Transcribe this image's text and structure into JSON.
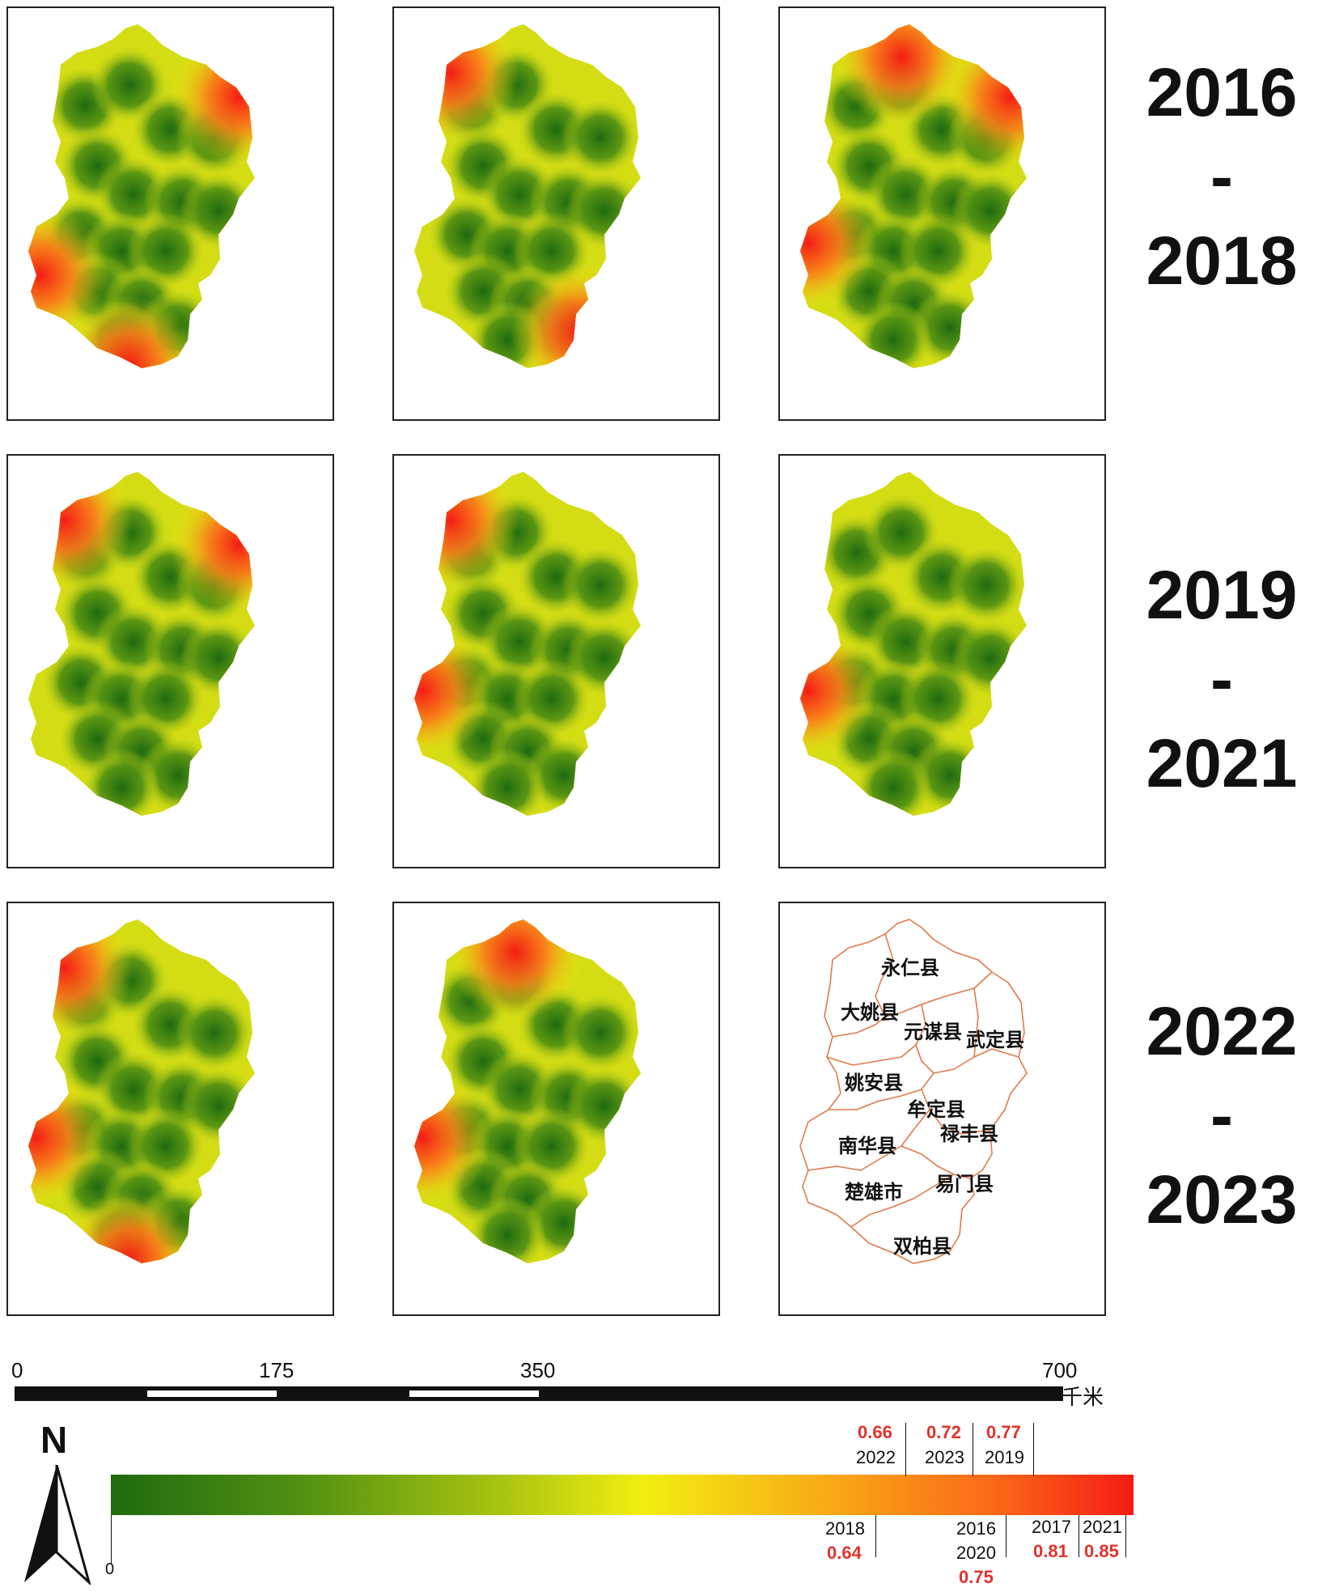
{
  "periods": [
    {
      "start": "2016",
      "dash": "-",
      "end": "2018"
    },
    {
      "start": "2019",
      "dash": "-",
      "end": "2021"
    },
    {
      "start": "2022",
      "dash": "-",
      "end": "2023"
    }
  ],
  "maps": [
    {
      "year": "2016",
      "hot": [
        "northeast",
        "southwest",
        "south"
      ]
    },
    {
      "year": "2017",
      "hot": [
        "northwest",
        "southeast"
      ]
    },
    {
      "year": "2018",
      "hot": [
        "north",
        "northeast",
        "west"
      ]
    },
    {
      "year": "2019",
      "hot": [
        "northwest",
        "northeast"
      ]
    },
    {
      "year": "2020",
      "hot": [
        "northwest",
        "west"
      ]
    },
    {
      "year": "2021",
      "hot": [
        "west"
      ]
    },
    {
      "year": "2022",
      "hot": [
        "northwest",
        "west",
        "south"
      ]
    },
    {
      "year": "2023",
      "hot": [
        "north",
        "west"
      ]
    }
  ],
  "counties": [
    {
      "name": "永仁县"
    },
    {
      "name": "大姚县"
    },
    {
      "name": "元谋县"
    },
    {
      "name": "武定县"
    },
    {
      "name": "姚安县"
    },
    {
      "name": "牟定县"
    },
    {
      "name": "南华县"
    },
    {
      "name": "禄丰县"
    },
    {
      "name": "楚雄市"
    },
    {
      "name": "易门县"
    },
    {
      "name": "双柏县"
    }
  ],
  "scale_bar": {
    "ticks": [
      "0",
      "175",
      "350",
      "700"
    ],
    "unit": "千米"
  },
  "north_arrow": {
    "label": "N"
  },
  "legend": {
    "min_label": "0",
    "colors": [
      "#1f6b0f",
      "#4f8f12",
      "#a7c410",
      "#f2ee10",
      "#f7b215",
      "#fb6a18",
      "#f41c15"
    ],
    "markers": [
      {
        "year": "2022",
        "value": "0.66"
      },
      {
        "year": "2023",
        "value": "0.72"
      },
      {
        "year": "2019",
        "value": "0.77"
      },
      {
        "year": "2018",
        "value": "0.64"
      },
      {
        "year": "2016",
        "value": ""
      },
      {
        "year": "2020",
        "value": "0.75"
      },
      {
        "year": "2017",
        "value": "0.81"
      },
      {
        "year": "2021",
        "value": "0.85"
      }
    ]
  }
}
